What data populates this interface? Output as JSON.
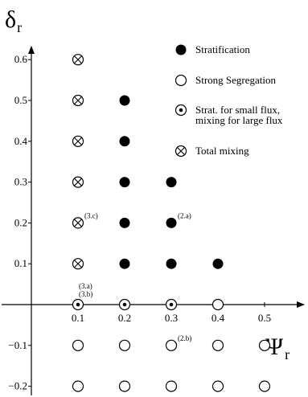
{
  "chart_data": {
    "type": "scatter",
    "title": "",
    "xlabel": {
      "main": "Ψ",
      "sub": "r"
    },
    "ylabel": {
      "main": "δ",
      "sub": "r"
    },
    "xlim": [
      0,
      0.6
    ],
    "ylim": [
      -0.2,
      0.6
    ],
    "x_ticks": [
      0.1,
      0.2,
      0.3,
      0.4,
      0.5
    ],
    "x_tick_labels": [
      "0.1",
      "0.2",
      "0.3",
      "0.4",
      "0.5"
    ],
    "y_ticks": [
      0.6,
      0.5,
      0.4,
      0.3,
      0.2,
      0.1,
      -0.1,
      -0.2
    ],
    "y_tick_labels": [
      "0.6",
      "0.5",
      "0.4",
      "0.3",
      "0.2",
      "0.1",
      "−0.1",
      "−0.2"
    ],
    "grid": false,
    "legend_position": "top-right",
    "series": [
      {
        "name": "Stratification",
        "marker": "filled-circle",
        "points": [
          [
            0.2,
            0.5
          ],
          [
            0.2,
            0.4
          ],
          [
            0.2,
            0.3
          ],
          [
            0.3,
            0.3
          ],
          [
            0.2,
            0.2
          ],
          [
            0.3,
            0.2
          ],
          [
            0.2,
            0.1
          ],
          [
            0.3,
            0.1
          ],
          [
            0.4,
            0.1
          ]
        ]
      },
      {
        "name": "Strong Segregation",
        "marker": "open-circle",
        "points": [
          [
            0.4,
            0
          ],
          [
            0.1,
            -0.1
          ],
          [
            0.2,
            -0.1
          ],
          [
            0.3,
            -0.1
          ],
          [
            0.4,
            -0.1
          ],
          [
            0.5,
            -0.1
          ],
          [
            0.1,
            -0.2
          ],
          [
            0.2,
            -0.2
          ],
          [
            0.3,
            -0.2
          ],
          [
            0.4,
            -0.2
          ],
          [
            0.5,
            -0.2
          ]
        ]
      },
      {
        "name": "Strat. for small flux, mixing for large flux",
        "legend_lines": [
          "Strat. for small flux,",
          "mixing for large flux"
        ],
        "marker": "dot-circle",
        "points": [
          [
            0.1,
            0
          ],
          [
            0.2,
            0
          ],
          [
            0.3,
            0
          ]
        ]
      },
      {
        "name": "Total mixing",
        "marker": "cross-circle",
        "points": [
          [
            0.1,
            0.6
          ],
          [
            0.1,
            0.5
          ],
          [
            0.1,
            0.4
          ],
          [
            0.1,
            0.3
          ],
          [
            0.1,
            0.2
          ],
          [
            0.1,
            0.1
          ]
        ]
      }
    ],
    "annotations": [
      {
        "text": "(3.c)",
        "x": 0.1,
        "y": 0.2,
        "placement": "upper-right"
      },
      {
        "text": "(2.a)",
        "x": 0.3,
        "y": 0.2,
        "placement": "upper-right"
      },
      {
        "text": "(3.a)",
        "x": 0.1,
        "y": 0,
        "placement": "above",
        "stack": 1
      },
      {
        "text": "(3.b)",
        "x": 0.1,
        "y": 0,
        "placement": "above",
        "stack": 0
      },
      {
        "text": "(2.b)",
        "x": 0.3,
        "y": -0.1,
        "placement": "upper-right"
      }
    ]
  }
}
